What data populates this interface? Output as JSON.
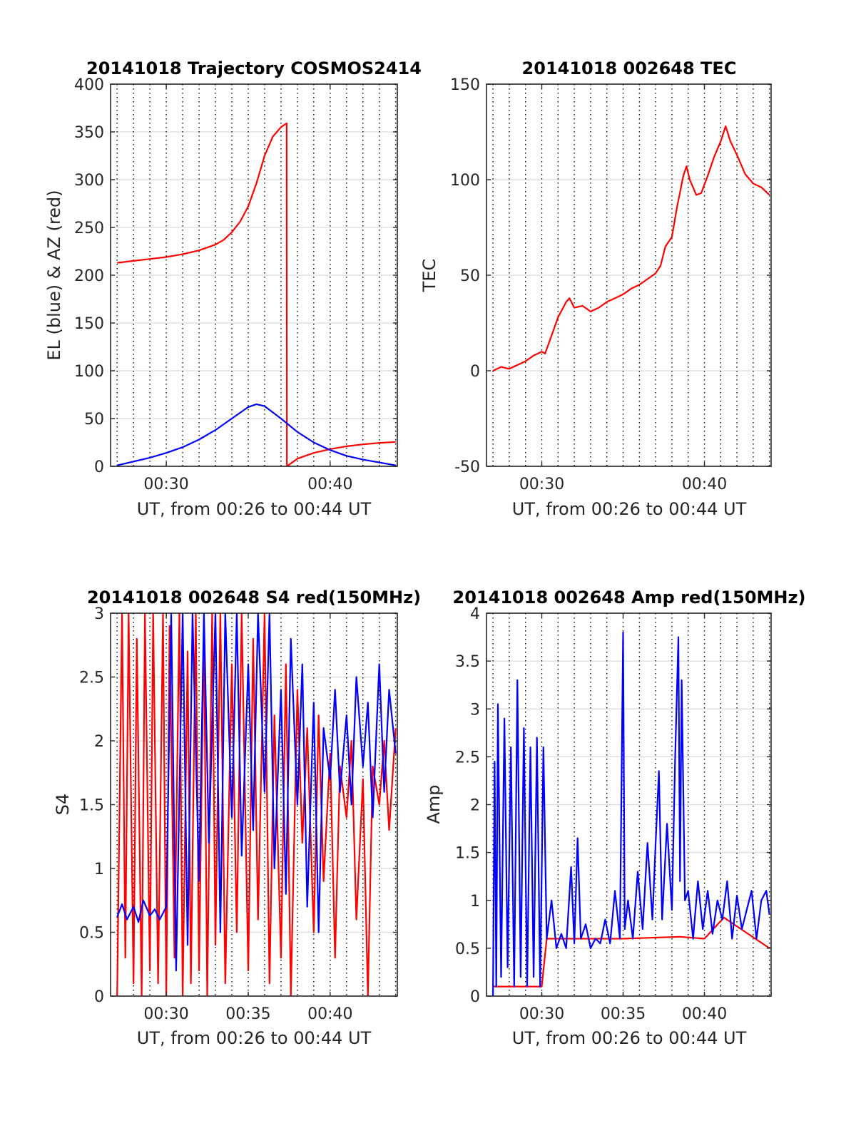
{
  "chart_data": [
    {
      "id": "traj",
      "type": "line",
      "title": "20141018 Trajectory COSMOS2414",
      "xlabel": "UT, from 00:26 to 00:44 UT",
      "ylabel": "EL (blue) & AZ (red)",
      "xlim": [
        26.6,
        44.1
      ],
      "ylim": [
        0,
        400
      ],
      "yticks": [
        0,
        50,
        100,
        150,
        200,
        250,
        300,
        350,
        400
      ],
      "xticks": [
        {
          "v": 30,
          "label": "00:30"
        },
        {
          "v": 40,
          "label": "00:40"
        }
      ],
      "grid": true,
      "series": [
        {
          "color": "#ff0000",
          "x": [
            27.0,
            28.0,
            29.0,
            30.0,
            31.0,
            32.0,
            33.0,
            33.5,
            34.0,
            34.5,
            35.0,
            35.5,
            36.0,
            36.5,
            37.0,
            37.35,
            37.36,
            38.0,
            39.0,
            40.0,
            41.0,
            42.0,
            43.0,
            44.0
          ],
          "y": [
            213,
            215,
            217,
            219,
            222,
            226,
            232,
            237,
            245,
            256,
            272,
            296,
            325,
            345,
            355,
            359,
            0,
            8,
            14,
            18,
            21,
            23,
            24.5,
            25.5
          ]
        },
        {
          "color": "#0000ff",
          "x": [
            27.0,
            28.0,
            29.0,
            30.0,
            31.0,
            32.0,
            33.0,
            34.0,
            35.0,
            35.5,
            36.0,
            37.0,
            38.0,
            39.0,
            40.0,
            41.0,
            42.0,
            43.0,
            44.0
          ],
          "y": [
            1,
            5,
            9,
            14,
            20,
            28,
            38,
            50,
            62,
            65,
            63,
            50,
            36,
            25,
            17,
            11,
            7,
            4,
            1
          ]
        }
      ]
    },
    {
      "id": "tec",
      "type": "line",
      "title": "20141018 002648 TEC",
      "xlabel": "UT, from 00:26 to 00:44 UT",
      "ylabel": "TEC",
      "xlim": [
        26.6,
        44.1
      ],
      "ylim": [
        -50,
        150
      ],
      "yticks": [
        -50,
        0,
        50,
        100,
        150
      ],
      "xticks": [
        {
          "v": 30,
          "label": "00:30"
        },
        {
          "v": 40,
          "label": "00:40"
        }
      ],
      "grid": true,
      "series": [
        {
          "color": "#ff0000",
          "x": [
            27.0,
            27.5,
            28.0,
            28.5,
            29.0,
            29.5,
            30.0,
            30.2,
            30.5,
            31.0,
            31.5,
            31.7,
            32.0,
            32.5,
            33.0,
            33.5,
            34.0,
            34.5,
            35.0,
            35.5,
            36.0,
            36.5,
            37.0,
            37.3,
            37.6,
            38.0,
            38.3,
            38.7,
            38.9,
            39.1,
            39.5,
            39.8,
            40.2,
            40.6,
            41.0,
            41.3,
            41.6,
            42.0,
            42.5,
            43.0,
            43.5,
            44.0
          ],
          "y": [
            0,
            2,
            1,
            3,
            5,
            8,
            10,
            9,
            16,
            28,
            36,
            38,
            33,
            34,
            31,
            33,
            36,
            38,
            40,
            43,
            45,
            48,
            51,
            55,
            65,
            70,
            85,
            102,
            107,
            100,
            92,
            93,
            102,
            112,
            120,
            128,
            120,
            113,
            103,
            98,
            96,
            92
          ]
        }
      ]
    },
    {
      "id": "s4",
      "type": "line",
      "title": "20141018 002648 S4 red(150MHz)",
      "xlabel": "UT, from 00:26 to 00:44 UT",
      "ylabel": "S4",
      "xlim": [
        26.6,
        44.1
      ],
      "ylim": [
        0,
        3
      ],
      "yticks": [
        0,
        0.5,
        1,
        1.5,
        2,
        2.5,
        3
      ],
      "xticks": [
        {
          "v": 30,
          "label": "00:30"
        },
        {
          "v": 35,
          "label": "00:35"
        },
        {
          "v": 40,
          "label": "00:40"
        }
      ],
      "grid": true,
      "series": [
        {
          "color": "#ff0000",
          "x": [
            27.0,
            27.3,
            27.5,
            27.7,
            28.0,
            28.2,
            28.5,
            28.7,
            29.0,
            29.2,
            29.5,
            29.8,
            30.0,
            30.2,
            30.5,
            30.8,
            31.0,
            31.3,
            31.5,
            31.8,
            32.0,
            32.3,
            32.5,
            32.8,
            33.0,
            33.3,
            33.6,
            34.0,
            34.3,
            34.6,
            35.0,
            35.3,
            35.6,
            36.0,
            36.3,
            36.6,
            37.0,
            37.3,
            37.6,
            38.0,
            38.3,
            38.6,
            39.0,
            39.3,
            39.6,
            40.0,
            40.3,
            40.6,
            41.0,
            41.3,
            41.6,
            42.0,
            42.3,
            42.6,
            43.0,
            43.3,
            43.6,
            44.0
          ],
          "y": [
            0,
            3,
            0.3,
            3,
            0.1,
            2.8,
            0,
            3,
            0.2,
            3,
            0.1,
            3,
            0,
            2.9,
            0.3,
            3,
            0,
            2.7,
            0.1,
            3,
            0.2,
            2.9,
            0,
            3,
            0.4,
            3,
            0.1,
            2.6,
            0.5,
            3,
            0.2,
            2.8,
            0.6,
            3,
            0.1,
            2.2,
            0.3,
            2.6,
            0,
            2.4,
            1.2,
            2.1,
            0.5,
            2.2,
            0.9,
            1.9,
            0.3,
            1.8,
            1.4,
            2.0,
            0.6,
            1.7,
            0,
            1.8,
            1.5,
            2.0,
            1.3,
            2.1
          ]
        },
        {
          "color": "#0000ff",
          "x": [
            27.0,
            27.3,
            27.6,
            28.0,
            28.3,
            28.6,
            29.0,
            29.3,
            29.6,
            30.0,
            30.3,
            30.6,
            31.0,
            31.3,
            31.6,
            32.0,
            32.3,
            32.6,
            33.0,
            33.3,
            33.6,
            34.0,
            34.3,
            34.6,
            35.0,
            35.3,
            35.6,
            36.0,
            36.3,
            36.6,
            37.0,
            37.3,
            37.6,
            38.0,
            38.3,
            38.6,
            39.0,
            39.3,
            39.6,
            40.0,
            40.3,
            40.6,
            41.0,
            41.3,
            41.6,
            42.0,
            42.3,
            42.6,
            43.0,
            43.3,
            43.6,
            44.0
          ],
          "y": [
            0.62,
            0.72,
            0.6,
            0.7,
            0.58,
            0.75,
            0.63,
            0.68,
            0.6,
            0.7,
            3,
            0.2,
            3,
            0.4,
            3,
            0.9,
            3,
            1.2,
            3,
            0.5,
            3,
            1.4,
            3,
            1.1,
            2.6,
            1.3,
            3,
            1.6,
            3,
            1.0,
            2.4,
            0.8,
            2.8,
            1.5,
            2.6,
            0.7,
            2.3,
            0.5,
            2.1,
            1.7,
            2.4,
            1.6,
            2.2,
            1.5,
            2.5,
            1.8,
            2.3,
            1.4,
            2.6,
            1.6,
            2.4,
            1.9
          ]
        }
      ]
    },
    {
      "id": "amp",
      "type": "line",
      "title": "20141018 002648 Amp red(150MHz)",
      "xlabel": "UT, from 00:26 to 00:44 UT",
      "ylabel": "Amp",
      "xlim": [
        26.6,
        44.1
      ],
      "ylim": [
        0,
        4
      ],
      "yticks": [
        0,
        0.5,
        1,
        1.5,
        2,
        2.5,
        3,
        3.5,
        4
      ],
      "xticks": [
        {
          "v": 30,
          "label": "00:30"
        },
        {
          "v": 35,
          "label": "00:35"
        },
        {
          "v": 40,
          "label": "00:40"
        }
      ],
      "grid": true,
      "series": [
        {
          "color": "#ff0000",
          "x": [
            27.0,
            30.0,
            30.3,
            35.0,
            38.5,
            40.0,
            41.2,
            44.0
          ],
          "y": [
            0.1,
            0.1,
            0.6,
            0.6,
            0.62,
            0.6,
            0.82,
            0.5
          ]
        },
        {
          "color": "#0000ff",
          "x": [
            27.0,
            27.1,
            27.2,
            27.3,
            27.5,
            27.7,
            27.9,
            28.1,
            28.3,
            28.5,
            28.7,
            28.9,
            29.1,
            29.3,
            29.5,
            29.7,
            29.9,
            30.1,
            30.3,
            30.6,
            30.9,
            31.2,
            31.5,
            31.8,
            32.0,
            32.2,
            32.4,
            32.7,
            33.0,
            33.3,
            33.6,
            33.9,
            34.2,
            34.5,
            34.8,
            35.0,
            35.1,
            35.3,
            35.6,
            35.9,
            36.2,
            36.5,
            36.8,
            37.0,
            37.2,
            37.4,
            37.7,
            38.0,
            38.2,
            38.4,
            38.5,
            38.6,
            38.8,
            39.0,
            39.3,
            39.6,
            39.9,
            40.2,
            40.5,
            40.8,
            41.1,
            41.4,
            41.7,
            42.0,
            42.3,
            42.6,
            42.9,
            43.2,
            43.5,
            43.8,
            44.0
          ],
          "y": [
            0,
            2.45,
            0.1,
            3.05,
            0.2,
            2.9,
            0.3,
            2.6,
            0.1,
            3.3,
            0.2,
            2.8,
            0.1,
            2.6,
            0.2,
            2.7,
            0.1,
            2.6,
            0.6,
            1.0,
            0.5,
            0.65,
            0.5,
            1.35,
            0.55,
            1.65,
            0.6,
            0.75,
            0.5,
            0.6,
            0.55,
            0.8,
            0.55,
            1.1,
            0.6,
            3.8,
            0.7,
            1.0,
            0.6,
            1.3,
            0.7,
            1.6,
            0.8,
            1.6,
            2.35,
            0.8,
            1.8,
            0.9,
            2.5,
            3.75,
            1.2,
            3.3,
            1.0,
            1.1,
            0.6,
            1.2,
            0.7,
            1.1,
            0.65,
            1.0,
            0.8,
            1.2,
            0.6,
            1.05,
            0.7,
            0.9,
            1.1,
            0.6,
            1.0,
            1.1,
            0.85
          ]
        }
      ]
    }
  ]
}
